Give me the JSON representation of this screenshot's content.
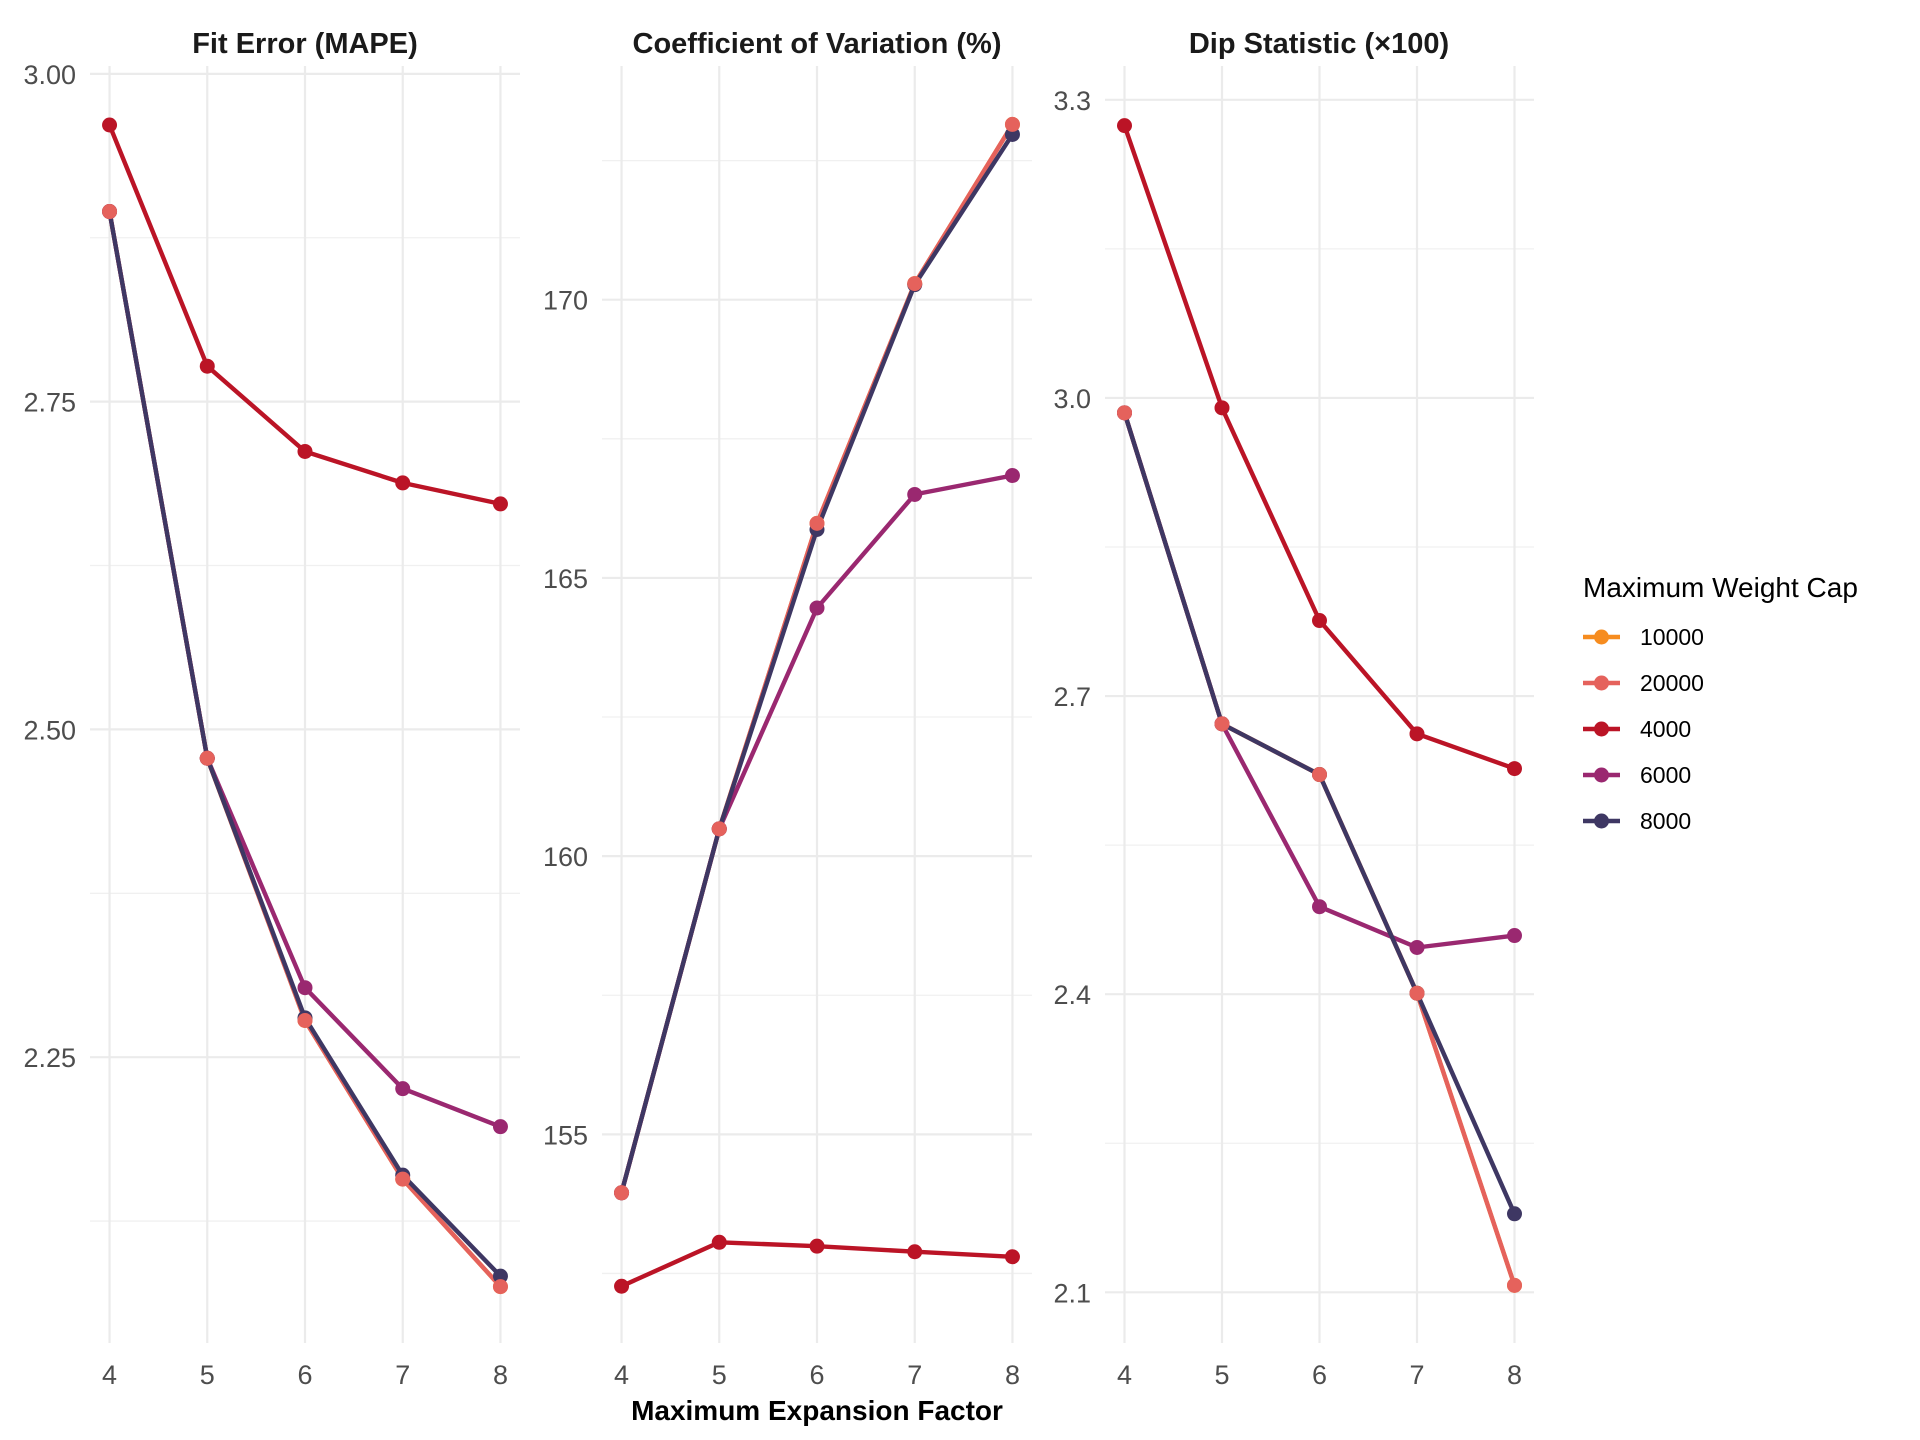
{
  "chart_data": {
    "type": "line",
    "layout": "faceted-3-panels",
    "xlabel": "Maximum Expansion Factor",
    "x": [
      4,
      5,
      6,
      7,
      8
    ],
    "xlim": [
      3.8,
      8.2
    ],
    "x_ticks": [
      "4",
      "5",
      "6",
      "7",
      "8"
    ],
    "grid": true,
    "legend": {
      "title": "Maximum Weight Cap",
      "placement": "right",
      "entries": [
        {
          "name": "10000",
          "color": "#F68C1F"
        },
        {
          "name": "20000",
          "color": "#E5625C"
        },
        {
          "name": "4000",
          "color": "#BB1426"
        },
        {
          "name": "6000",
          "color": "#9A2870"
        },
        {
          "name": "8000",
          "color": "#3E3763"
        }
      ]
    },
    "panels": [
      {
        "title": "Fit Error (MAPE)",
        "ylim": [
          2.032,
          3.006
        ],
        "y_ticks": [
          2.25,
          2.5,
          2.75,
          3.0
        ],
        "y_tick_labels": [
          "2.25",
          "2.50",
          "2.75",
          "3.00"
        ],
        "series": [
          {
            "name": "10000",
            "values": [
              2.895,
              2.478,
              2.278,
              2.157,
              2.075
            ]
          },
          {
            "name": "20000",
            "values": [
              2.895,
              2.478,
              2.278,
              2.157,
              2.075
            ]
          },
          {
            "name": "4000",
            "values": [
              2.961,
              2.777,
              2.712,
              2.688,
              2.672
            ]
          },
          {
            "name": "6000",
            "values": [
              2.895,
              2.478,
              2.303,
              2.226,
              2.197
            ]
          },
          {
            "name": "8000",
            "values": [
              2.895,
              2.478,
              2.28,
              2.16,
              2.083
            ]
          }
        ]
      },
      {
        "title": "Coefficient of Variation (%)",
        "ylim": [
          151.25,
          174.2
        ],
        "y_ticks": [
          155,
          160,
          165,
          170
        ],
        "y_tick_labels": [
          "155",
          "160",
          "165",
          "170"
        ],
        "series": [
          {
            "name": "10000",
            "values": [
              153.95,
              160.49,
              165.98,
              170.29,
              173.15
            ]
          },
          {
            "name": "20000",
            "values": [
              153.95,
              160.49,
              165.98,
              170.29,
              173.15
            ]
          },
          {
            "name": "4000",
            "values": [
              152.27,
              153.06,
              152.99,
              152.89,
              152.8
            ]
          },
          {
            "name": "6000",
            "values": [
              153.95,
              160.49,
              164.46,
              166.5,
              166.84
            ]
          },
          {
            "name": "8000",
            "values": [
              153.95,
              160.49,
              165.87,
              170.27,
              172.97
            ]
          }
        ]
      },
      {
        "title": "Dip Statistic (×100)",
        "ylim": [
          2.049,
          3.334
        ],
        "y_ticks": [
          2.1,
          2.4,
          2.7,
          3.0,
          3.3
        ],
        "y_tick_labels": [
          "2.1",
          "2.4",
          "2.7",
          "3.0",
          "3.3"
        ],
        "series": [
          {
            "name": "10000",
            "values": [
              2.985,
              2.672,
              2.621,
              2.401,
              2.107
            ]
          },
          {
            "name": "20000",
            "values": [
              2.985,
              2.672,
              2.621,
              2.401,
              2.107
            ]
          },
          {
            "name": "4000",
            "values": [
              3.274,
              2.99,
              2.776,
              2.662,
              2.627
            ]
          },
          {
            "name": "6000",
            "values": [
              2.985,
              2.672,
              2.488,
              2.447,
              2.459
            ]
          },
          {
            "name": "8000",
            "values": [
              2.985,
              2.672,
              2.621,
              2.401,
              2.179
            ]
          }
        ]
      }
    ]
  }
}
